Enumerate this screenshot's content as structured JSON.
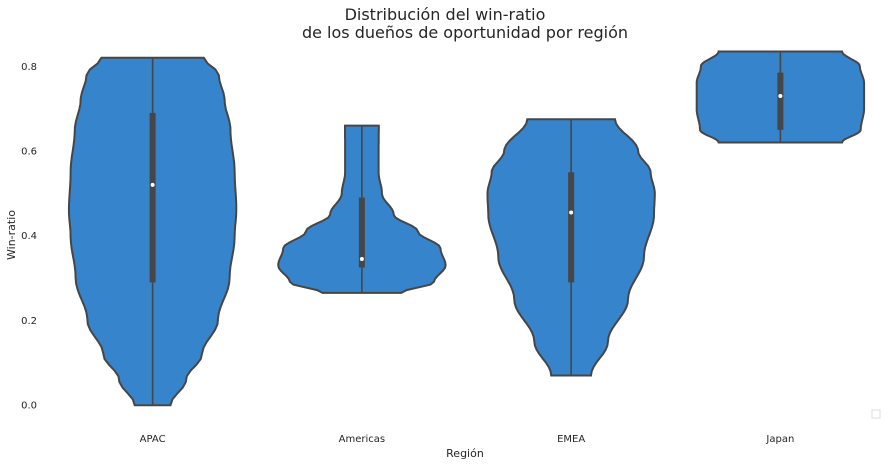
{
  "chart_data": {
    "type": "violin",
    "title": [
      "Distribución del win-ratio",
      "de los dueños de oportunidad por región"
    ],
    "xlabel": "Región",
    "ylabel": "Win-ratio",
    "ylim": [
      -0.035,
      0.855
    ],
    "yticks": [
      "0.0",
      "0.2",
      "0.4",
      "0.6",
      "0.8"
    ],
    "grid": false,
    "fill_color": "#3584cc",
    "edge_color": "#464646",
    "categories": [
      "APAC",
      "Americas",
      "EMEA",
      "Japan"
    ],
    "violins": [
      {
        "category": "APAC",
        "min": 0.0,
        "max": 0.82,
        "q1": 0.29,
        "median": 0.52,
        "q3": 0.69,
        "profile": [
          [
            0.0,
            0.214
          ],
          [
            0.06,
            0.4
          ],
          [
            0.12,
            0.59
          ],
          [
            0.2,
            0.78
          ],
          [
            0.3,
            0.92
          ],
          [
            0.4,
            0.98
          ],
          [
            0.46,
            1.0
          ],
          [
            0.55,
            0.98
          ],
          [
            0.65,
            0.93
          ],
          [
            0.72,
            0.86
          ],
          [
            0.78,
            0.79
          ],
          [
            0.82,
            0.612
          ]
        ]
      },
      {
        "category": "Americas",
        "min": 0.265,
        "max": 0.66,
        "q1": 0.325,
        "median": 0.345,
        "q3": 0.49,
        "profile": [
          [
            0.265,
            0.471
          ],
          [
            0.29,
            0.86
          ],
          [
            0.33,
            1.0
          ],
          [
            0.37,
            0.94
          ],
          [
            0.41,
            0.67
          ],
          [
            0.45,
            0.38
          ],
          [
            0.5,
            0.24
          ],
          [
            0.55,
            0.2
          ],
          [
            0.6,
            0.2
          ],
          [
            0.66,
            0.202
          ]
        ]
      },
      {
        "category": "EMEA",
        "min": 0.07,
        "max": 0.675,
        "q1": 0.29,
        "median": 0.455,
        "q3": 0.55,
        "profile": [
          [
            0.07,
            0.238
          ],
          [
            0.15,
            0.44
          ],
          [
            0.25,
            0.68
          ],
          [
            0.35,
            0.87
          ],
          [
            0.45,
            0.99
          ],
          [
            0.5,
            1.0
          ],
          [
            0.55,
            0.95
          ],
          [
            0.6,
            0.8
          ],
          [
            0.675,
            0.524
          ]
        ]
      },
      {
        "category": "Japan",
        "min": 0.62,
        "max": 0.835,
        "q1": 0.65,
        "median": 0.73,
        "q3": 0.785,
        "profile": [
          [
            0.62,
            0.738
          ],
          [
            0.65,
            0.96
          ],
          [
            0.7,
            1.0
          ],
          [
            0.76,
            1.0
          ],
          [
            0.8,
            0.95
          ],
          [
            0.835,
            0.738
          ]
        ]
      }
    ]
  }
}
